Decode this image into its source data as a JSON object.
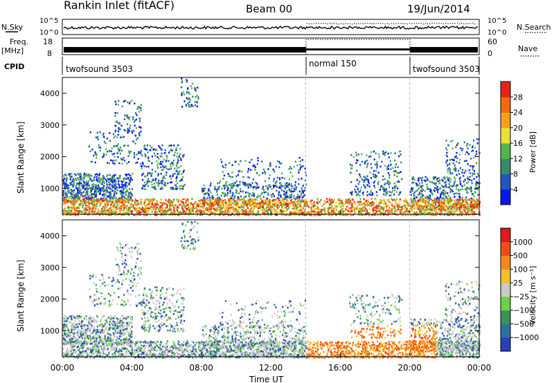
{
  "header": {
    "station": "Rankin Inlet (fitACF)",
    "beam": "Beam 00",
    "date": "19/Jun/2014"
  },
  "top_panels": {
    "nsky_label": "N.Sky",
    "nsky_ticks": [
      "10^5",
      "10^0"
    ],
    "nsearch_label": "N.Search",
    "nsearch_ticks": [
      "10^5",
      "10^0"
    ],
    "freq_label": "Freq.",
    "freq_unit": "[MHz]",
    "freq_ticks": [
      "18",
      "8"
    ],
    "nave_label": "Nave",
    "nave_ticks": [
      "60",
      "0"
    ],
    "cpid_label": "CPID",
    "cpid_segments": [
      {
        "name": "twofsound 3503",
        "start": 0,
        "end": 14
      },
      {
        "name": "normal 150",
        "start": 14,
        "end": 20
      },
      {
        "name": "twofsound 3503",
        "start": 20,
        "end": 24
      }
    ]
  },
  "chart_data": [
    {
      "type": "heatmap",
      "title": "",
      "xlabel": "Time UT",
      "ylabel": "Slant Range [km]",
      "x_ticks": [
        "00:00",
        "04:00",
        "08:00",
        "12:00",
        "16:00",
        "20:00",
        "00:00"
      ],
      "y_ticks": [
        "1000",
        "2000",
        "3000",
        "4000"
      ],
      "xlim": [
        0,
        24
      ],
      "ylim": [
        180,
        4500
      ],
      "colorbar": {
        "label": "Power [dB]",
        "ticks": [
          "4",
          "8",
          "12",
          "16",
          "20",
          "24",
          "28"
        ],
        "colors": [
          "#0a14f0",
          "#2356b8",
          "#3a8a6a",
          "#54b34f",
          "#e8e23a",
          "#f5a11c",
          "#f26a10",
          "#e8221a"
        ]
      },
      "mode_boundaries_hours": [
        14,
        20
      ]
    },
    {
      "type": "heatmap",
      "title": "",
      "xlabel": "Time UT",
      "ylabel": "Slant Range [km]",
      "x_ticks": [
        "00:00",
        "04:00",
        "08:00",
        "12:00",
        "16:00",
        "20:00",
        "00:00"
      ],
      "y_ticks": [
        "1000",
        "2000",
        "3000",
        "4000"
      ],
      "xlim": [
        0,
        24
      ],
      "ylim": [
        180,
        4500
      ],
      "colorbar": {
        "label": "Velocity [m s⁻¹]",
        "ticks": [
          "1000",
          "500",
          "100",
          "25",
          "−25",
          "−100",
          "−500",
          "−1000"
        ],
        "colors": [
          "#2b3fb8",
          "#2e6fa0",
          "#3f8f5a",
          "#6fcf4a",
          "#c9c9c9",
          "#f4c02a",
          "#f08a1a",
          "#f04a1a",
          "#e0191a"
        ]
      },
      "mode_boundaries_hours": [
        14,
        20
      ]
    }
  ]
}
